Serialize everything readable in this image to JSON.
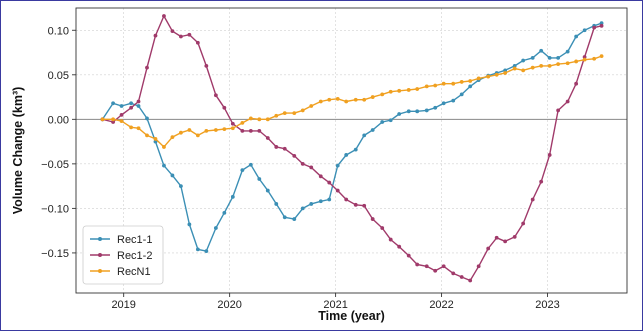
{
  "chart_data": {
    "type": "line",
    "title": "",
    "xlabel": "Time (year)",
    "ylabel": "Volume Change (km³)",
    "xlim": [
      2018.55,
      2023.75
    ],
    "ylim": [
      -0.195,
      0.125
    ],
    "xticks": [
      2019,
      2020,
      2021,
      2022,
      2023
    ],
    "xtick_labels": [
      "2019",
      "2020",
      "2021",
      "2022",
      "2023"
    ],
    "yticks": [
      -0.15,
      -0.1,
      -0.05,
      0.0,
      0.05,
      0.1
    ],
    "ytick_labels": [
      "−0.15",
      "−0.10",
      "−0.05",
      "0.00",
      "0.05",
      "0.10"
    ],
    "grid": true,
    "zero_line": true,
    "legend_position": "lower-left",
    "series": [
      {
        "name": "Rec1-1",
        "color": "#3b8fb5",
        "x": [
          2018.8,
          2018.9,
          2018.98,
          2019.07,
          2019.14,
          2019.22,
          2019.3,
          2019.38,
          2019.46,
          2019.54,
          2019.62,
          2019.7,
          2019.78,
          2019.87,
          2019.95,
          2020.03,
          2020.12,
          2020.2,
          2020.28,
          2020.36,
          2020.44,
          2020.52,
          2020.61,
          2020.69,
          2020.77,
          2020.86,
          2020.94,
          2021.02,
          2021.1,
          2021.19,
          2021.27,
          2021.35,
          2021.44,
          2021.52,
          2021.6,
          2021.69,
          2021.77,
          2021.86,
          2021.94,
          2022.02,
          2022.11,
          2022.19,
          2022.27,
          2022.35,
          2022.44,
          2022.52,
          2022.6,
          2022.69,
          2022.77,
          2022.86,
          2022.94,
          2023.02,
          2023.1,
          2023.19,
          2023.27,
          2023.35,
          2023.44,
          2023.51
        ],
        "y": [
          0.0,
          0.018,
          0.015,
          0.018,
          0.015,
          0.001,
          -0.025,
          -0.052,
          -0.063,
          -0.075,
          -0.118,
          -0.146,
          -0.148,
          -0.122,
          -0.105,
          -0.087,
          -0.057,
          -0.051,
          -0.067,
          -0.08,
          -0.095,
          -0.11,
          -0.112,
          -0.1,
          -0.095,
          -0.092,
          -0.09,
          -0.052,
          -0.04,
          -0.034,
          -0.018,
          -0.012,
          -0.003,
          -0.001,
          0.006,
          0.009,
          0.009,
          0.01,
          0.013,
          0.018,
          0.021,
          0.028,
          0.037,
          0.044,
          0.049,
          0.052,
          0.055,
          0.06,
          0.066,
          0.069,
          0.077,
          0.069,
          0.069,
          0.076,
          0.093,
          0.1,
          0.105,
          0.108
        ]
      },
      {
        "name": "Rec1-2",
        "color": "#a03a6a",
        "x": [
          2018.8,
          2018.9,
          2018.98,
          2019.07,
          2019.14,
          2019.22,
          2019.3,
          2019.38,
          2019.46,
          2019.54,
          2019.62,
          2019.7,
          2019.78,
          2019.87,
          2019.95,
          2020.03,
          2020.12,
          2020.2,
          2020.28,
          2020.36,
          2020.44,
          2020.52,
          2020.61,
          2020.69,
          2020.77,
          2020.86,
          2020.94,
          2021.02,
          2021.1,
          2021.19,
          2021.27,
          2021.35,
          2021.44,
          2021.52,
          2021.6,
          2021.69,
          2021.77,
          2021.86,
          2021.94,
          2022.02,
          2022.11,
          2022.19,
          2022.27,
          2022.35,
          2022.44,
          2022.52,
          2022.6,
          2022.69,
          2022.77,
          2022.86,
          2022.94,
          2023.02,
          2023.1,
          2023.19,
          2023.27,
          2023.35,
          2023.44,
          2023.51
        ],
        "y": [
          0.0,
          -0.003,
          0.005,
          0.013,
          0.02,
          0.058,
          0.094,
          0.116,
          0.099,
          0.093,
          0.095,
          0.086,
          0.06,
          0.027,
          0.013,
          -0.005,
          -0.013,
          -0.013,
          -0.013,
          -0.021,
          -0.031,
          -0.033,
          -0.041,
          -0.05,
          -0.054,
          -0.064,
          -0.071,
          -0.08,
          -0.09,
          -0.096,
          -0.097,
          -0.112,
          -0.122,
          -0.135,
          -0.143,
          -0.153,
          -0.163,
          -0.165,
          -0.17,
          -0.165,
          -0.173,
          -0.177,
          -0.181,
          -0.165,
          -0.145,
          -0.133,
          -0.137,
          -0.132,
          -0.117,
          -0.09,
          -0.07,
          -0.04,
          0.01,
          0.02,
          0.04,
          0.07,
          0.103,
          0.105
        ]
      },
      {
        "name": "RecN1",
        "color": "#f0a020",
        "x": [
          2018.8,
          2018.9,
          2018.98,
          2019.07,
          2019.14,
          2019.22,
          2019.3,
          2019.38,
          2019.46,
          2019.54,
          2019.62,
          2019.7,
          2019.78,
          2019.87,
          2019.95,
          2020.03,
          2020.12,
          2020.2,
          2020.28,
          2020.36,
          2020.44,
          2020.52,
          2020.61,
          2020.69,
          2020.77,
          2020.86,
          2020.94,
          2021.02,
          2021.1,
          2021.19,
          2021.27,
          2021.35,
          2021.44,
          2021.52,
          2021.6,
          2021.69,
          2021.77,
          2021.86,
          2021.94,
          2022.02,
          2022.11,
          2022.19,
          2022.27,
          2022.35,
          2022.44,
          2022.52,
          2022.6,
          2022.69,
          2022.77,
          2022.86,
          2022.94,
          2023.02,
          2023.1,
          2023.19,
          2023.27,
          2023.35,
          2023.44,
          2023.51
        ],
        "y": [
          0.0,
          0.0,
          -0.002,
          -0.009,
          -0.01,
          -0.018,
          -0.022,
          -0.031,
          -0.02,
          -0.015,
          -0.012,
          -0.018,
          -0.013,
          -0.012,
          -0.011,
          -0.01,
          -0.004,
          0.001,
          0.0,
          0.0,
          0.004,
          0.007,
          0.007,
          0.01,
          0.015,
          0.02,
          0.022,
          0.023,
          0.02,
          0.022,
          0.022,
          0.025,
          0.028,
          0.031,
          0.032,
          0.033,
          0.034,
          0.037,
          0.038,
          0.04,
          0.04,
          0.042,
          0.043,
          0.046,
          0.048,
          0.05,
          0.052,
          0.057,
          0.055,
          0.058,
          0.06,
          0.06,
          0.062,
          0.063,
          0.065,
          0.067,
          0.068,
          0.071
        ]
      }
    ]
  }
}
